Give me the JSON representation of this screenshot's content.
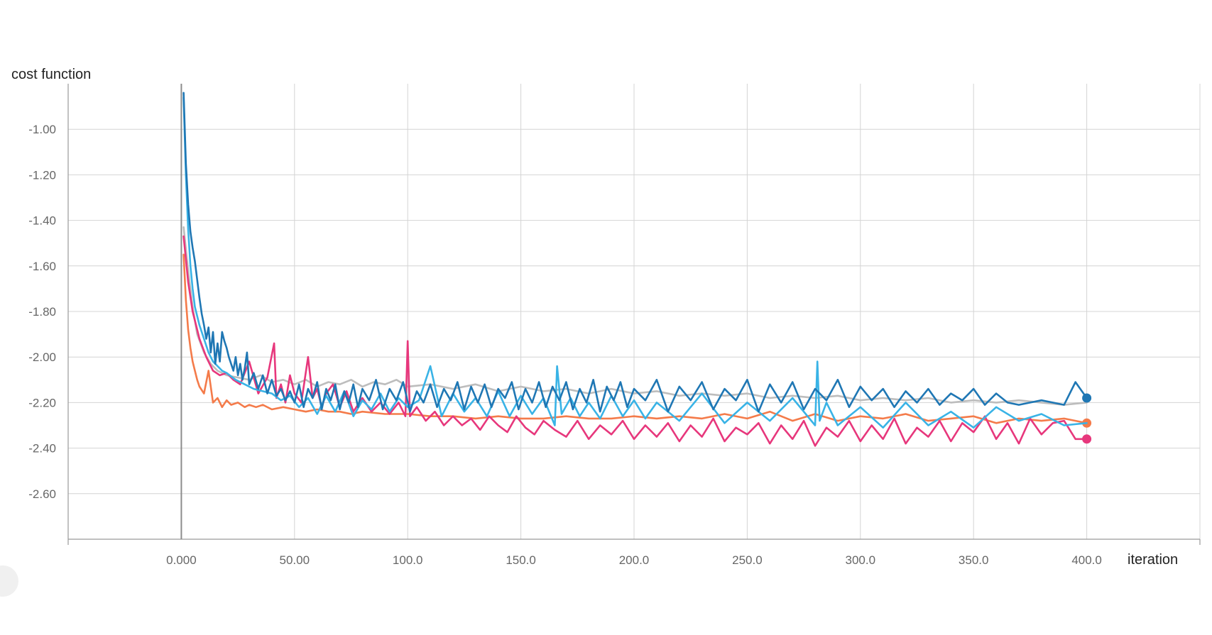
{
  "chart_data": {
    "type": "line",
    "title": "",
    "ylabel": "cost function",
    "xlabel": "iteration",
    "xlim": [
      -50,
      450
    ],
    "ylim": [
      -2.8,
      -0.8
    ],
    "xticks": [
      0,
      50,
      100,
      150,
      200,
      250,
      300,
      350,
      400
    ],
    "xtick_labels": [
      "0.000",
      "50.00",
      "100.0",
      "150.0",
      "200.0",
      "250.0",
      "300.0",
      "350.0",
      "400.0"
    ],
    "yticks": [
      -1.0,
      -1.2,
      -1.4,
      -1.6,
      -1.8,
      -2.0,
      -2.2,
      -2.4,
      -2.6
    ],
    "ytick_labels": [
      "-1.00",
      "-1.20",
      "-1.40",
      "-1.60",
      "-1.80",
      "-2.00",
      "-2.20",
      "-2.40",
      "-2.60"
    ],
    "grid": true,
    "legend": "none",
    "series": [
      {
        "color": "#bdbdbd",
        "x": [
          1,
          3,
          5,
          7,
          10,
          13,
          16,
          20,
          25,
          30,
          35,
          40,
          45,
          50,
          55,
          60,
          65,
          70,
          75,
          80,
          85,
          90,
          95,
          100,
          110,
          120,
          130,
          140,
          150,
          160,
          170,
          180,
          190,
          200,
          210,
          220,
          230,
          240,
          250,
          260,
          270,
          280,
          290,
          300,
          310,
          320,
          330,
          340,
          350,
          360,
          370,
          380,
          390,
          400
        ],
        "y": [
          -1.43,
          -1.62,
          -1.78,
          -1.9,
          -1.98,
          -2.03,
          -2.06,
          -2.08,
          -2.09,
          -2.1,
          -2.08,
          -2.11,
          -2.1,
          -2.12,
          -2.1,
          -2.13,
          -2.11,
          -2.12,
          -2.1,
          -2.13,
          -2.11,
          -2.12,
          -2.1,
          -2.13,
          -2.12,
          -2.14,
          -2.12,
          -2.15,
          -2.13,
          -2.15,
          -2.14,
          -2.16,
          -2.14,
          -2.16,
          -2.15,
          -2.17,
          -2.16,
          -2.17,
          -2.16,
          -2.18,
          -2.17,
          -2.18,
          -2.17,
          -2.19,
          -2.18,
          -2.19,
          -2.18,
          -2.2,
          -2.19,
          -2.2,
          -2.19,
          -2.2,
          -2.21,
          -2.2
        ],
        "end_marker": false
      },
      {
        "color": "#f47b4a",
        "x": [
          1,
          2,
          3,
          4,
          5,
          6,
          7,
          8,
          10,
          12,
          14,
          16,
          18,
          20,
          22,
          25,
          28,
          30,
          33,
          36,
          40,
          45,
          50,
          55,
          60,
          65,
          70,
          75,
          80,
          90,
          100,
          110,
          120,
          130,
          140,
          150,
          160,
          170,
          180,
          190,
          200,
          210,
          220,
          230,
          240,
          250,
          260,
          270,
          280,
          290,
          300,
          310,
          320,
          330,
          340,
          350,
          360,
          370,
          380,
          390,
          400
        ],
        "y": [
          -1.55,
          -1.75,
          -1.88,
          -1.96,
          -2.02,
          -2.06,
          -2.1,
          -2.13,
          -2.16,
          -2.06,
          -2.2,
          -2.18,
          -2.22,
          -2.19,
          -2.21,
          -2.2,
          -2.22,
          -2.21,
          -2.22,
          -2.21,
          -2.23,
          -2.22,
          -2.23,
          -2.24,
          -2.23,
          -2.24,
          -2.24,
          -2.25,
          -2.24,
          -2.25,
          -2.25,
          -2.26,
          -2.26,
          -2.27,
          -2.26,
          -2.27,
          -2.27,
          -2.26,
          -2.27,
          -2.27,
          -2.26,
          -2.27,
          -2.26,
          -2.27,
          -2.25,
          -2.27,
          -2.24,
          -2.28,
          -2.25,
          -2.28,
          -2.26,
          -2.27,
          -2.25,
          -2.28,
          -2.27,
          -2.26,
          -2.29,
          -2.27,
          -2.28,
          -2.27,
          -2.29
        ],
        "end_marker": true
      },
      {
        "color": "#e7377c",
        "x": [
          1,
          3,
          5,
          8,
          11,
          14,
          17,
          20,
          23,
          26,
          30,
          34,
          38,
          41,
          42,
          44,
          46,
          48,
          50,
          53,
          56,
          58,
          60,
          62,
          64,
          67,
          70,
          73,
          76,
          80,
          84,
          88,
          92,
          96,
          99,
          100,
          101,
          104,
          108,
          112,
          116,
          120,
          124,
          128,
          132,
          136,
          140,
          144,
          148,
          152,
          156,
          160,
          165,
          170,
          175,
          180,
          185,
          190,
          195,
          200,
          205,
          210,
          215,
          220,
          225,
          230,
          235,
          240,
          245,
          250,
          255,
          260,
          265,
          270,
          275,
          280,
          285,
          290,
          295,
          300,
          305,
          310,
          315,
          320,
          325,
          330,
          335,
          340,
          345,
          350,
          355,
          360,
          365,
          370,
          375,
          380,
          385,
          390,
          395,
          400
        ],
        "y": [
          -1.47,
          -1.67,
          -1.8,
          -1.92,
          -2.0,
          -2.06,
          -2.08,
          -2.07,
          -2.1,
          -2.12,
          -2.02,
          -2.16,
          -2.09,
          -1.94,
          -2.18,
          -2.12,
          -2.2,
          -2.08,
          -2.16,
          -2.2,
          -2.0,
          -2.18,
          -2.14,
          -2.22,
          -2.16,
          -2.12,
          -2.22,
          -2.15,
          -2.24,
          -2.18,
          -2.24,
          -2.2,
          -2.25,
          -2.2,
          -2.26,
          -1.93,
          -2.26,
          -2.22,
          -2.28,
          -2.24,
          -2.3,
          -2.26,
          -2.3,
          -2.27,
          -2.32,
          -2.26,
          -2.3,
          -2.33,
          -2.26,
          -2.31,
          -2.34,
          -2.28,
          -2.32,
          -2.35,
          -2.28,
          -2.36,
          -2.3,
          -2.34,
          -2.28,
          -2.36,
          -2.3,
          -2.35,
          -2.29,
          -2.37,
          -2.3,
          -2.35,
          -2.27,
          -2.37,
          -2.31,
          -2.34,
          -2.29,
          -2.38,
          -2.3,
          -2.36,
          -2.28,
          -2.39,
          -2.31,
          -2.35,
          -2.28,
          -2.37,
          -2.3,
          -2.36,
          -2.27,
          -2.38,
          -2.31,
          -2.35,
          -2.28,
          -2.37,
          -2.29,
          -2.33,
          -2.26,
          -2.36,
          -2.29,
          -2.38,
          -2.27,
          -2.34,
          -2.29,
          -2.28,
          -2.36,
          -2.36
        ],
        "end_marker": true
      },
      {
        "color": "#39b3e6",
        "x": [
          1,
          2,
          3,
          4,
          5,
          6,
          8,
          10,
          12,
          14,
          16,
          18,
          20,
          24,
          28,
          32,
          36,
          40,
          44,
          48,
          52,
          56,
          60,
          64,
          68,
          72,
          76,
          80,
          84,
          88,
          92,
          96,
          100,
          105,
          110,
          115,
          120,
          125,
          130,
          135,
          140,
          145,
          150,
          155,
          160,
          165,
          166,
          168,
          172,
          176,
          180,
          185,
          190,
          195,
          200,
          205,
          210,
          220,
          230,
          240,
          250,
          260,
          270,
          280,
          281,
          282,
          285,
          290,
          300,
          310,
          320,
          330,
          340,
          350,
          360,
          370,
          380,
          390,
          400
        ],
        "y": [
          -0.86,
          -1.2,
          -1.44,
          -1.6,
          -1.7,
          -1.78,
          -1.86,
          -1.92,
          -1.98,
          -2.02,
          -2.04,
          -2.06,
          -2.07,
          -2.1,
          -2.12,
          -2.14,
          -2.15,
          -2.16,
          -2.19,
          -2.17,
          -2.22,
          -2.18,
          -2.25,
          -2.17,
          -2.24,
          -2.15,
          -2.26,
          -2.19,
          -2.23,
          -2.16,
          -2.24,
          -2.18,
          -2.22,
          -2.19,
          -2.04,
          -2.26,
          -2.16,
          -2.24,
          -2.18,
          -2.26,
          -2.15,
          -2.26,
          -2.17,
          -2.25,
          -2.18,
          -2.3,
          -2.04,
          -2.25,
          -2.18,
          -2.26,
          -2.2,
          -2.27,
          -2.17,
          -2.26,
          -2.19,
          -2.27,
          -2.2,
          -2.28,
          -2.16,
          -2.29,
          -2.2,
          -2.28,
          -2.18,
          -2.3,
          -2.02,
          -2.28,
          -2.2,
          -2.3,
          -2.22,
          -2.31,
          -2.2,
          -2.3,
          -2.24,
          -2.31,
          -2.22,
          -2.28,
          -2.25,
          -2.3,
          -2.29
        ],
        "end_marker": false
      },
      {
        "color": "#1f77b4",
        "x": [
          1,
          2,
          3,
          4,
          5,
          6,
          7,
          8,
          9,
          10,
          11,
          12,
          13,
          14,
          15,
          16,
          17,
          18,
          19,
          20,
          21,
          22,
          23,
          24,
          25,
          26,
          27,
          28,
          29,
          30,
          32,
          34,
          36,
          38,
          40,
          42,
          44,
          46,
          48,
          50,
          52,
          54,
          56,
          58,
          60,
          62,
          64,
          66,
          68,
          70,
          72,
          74,
          76,
          78,
          80,
          83,
          86,
          89,
          92,
          95,
          98,
          101,
          104,
          107,
          110,
          113,
          116,
          119,
          122,
          125,
          128,
          131,
          134,
          137,
          140,
          143,
          146,
          149,
          152,
          155,
          158,
          161,
          164,
          167,
          170,
          173,
          176,
          179,
          182,
          185,
          188,
          191,
          194,
          197,
          200,
          205,
          210,
          215,
          220,
          225,
          230,
          235,
          240,
          245,
          250,
          255,
          260,
          265,
          270,
          275,
          280,
          285,
          290,
          295,
          300,
          305,
          310,
          315,
          320,
          325,
          330,
          335,
          340,
          345,
          350,
          355,
          360,
          365,
          370,
          375,
          380,
          385,
          390,
          395,
          400
        ],
        "y": [
          -0.84,
          -1.15,
          -1.33,
          -1.45,
          -1.52,
          -1.58,
          -1.66,
          -1.74,
          -1.81,
          -1.86,
          -1.92,
          -1.87,
          -1.98,
          -1.89,
          -2.03,
          -1.94,
          -2.02,
          -1.89,
          -1.93,
          -1.96,
          -2.0,
          -2.03,
          -2.06,
          -2.0,
          -2.08,
          -2.03,
          -2.1,
          -2.05,
          -1.98,
          -2.12,
          -2.07,
          -2.14,
          -2.08,
          -2.16,
          -2.1,
          -2.17,
          -2.14,
          -2.19,
          -2.15,
          -2.2,
          -2.12,
          -2.22,
          -2.14,
          -2.18,
          -2.11,
          -2.23,
          -2.14,
          -2.19,
          -2.12,
          -2.23,
          -2.15,
          -2.2,
          -2.12,
          -2.22,
          -2.14,
          -2.19,
          -2.1,
          -2.23,
          -2.14,
          -2.19,
          -2.11,
          -2.24,
          -2.15,
          -2.2,
          -2.12,
          -2.22,
          -2.14,
          -2.19,
          -2.11,
          -2.23,
          -2.13,
          -2.2,
          -2.12,
          -2.22,
          -2.14,
          -2.18,
          -2.11,
          -2.23,
          -2.14,
          -2.2,
          -2.11,
          -2.22,
          -2.13,
          -2.19,
          -2.11,
          -2.23,
          -2.14,
          -2.2,
          -2.1,
          -2.24,
          -2.13,
          -2.19,
          -2.11,
          -2.22,
          -2.14,
          -2.19,
          -2.1,
          -2.24,
          -2.13,
          -2.19,
          -2.11,
          -2.23,
          -2.14,
          -2.19,
          -2.1,
          -2.24,
          -2.12,
          -2.2,
          -2.11,
          -2.23,
          -2.14,
          -2.19,
          -2.1,
          -2.22,
          -2.13,
          -2.19,
          -2.14,
          -2.22,
          -2.15,
          -2.2,
          -2.14,
          -2.21,
          -2.16,
          -2.19,
          -2.14,
          -2.21,
          -2.16,
          -2.2,
          -2.21,
          -2.2,
          -2.19,
          -2.2,
          -2.21,
          -2.11,
          -2.18
        ],
        "end_marker": true
      }
    ]
  }
}
